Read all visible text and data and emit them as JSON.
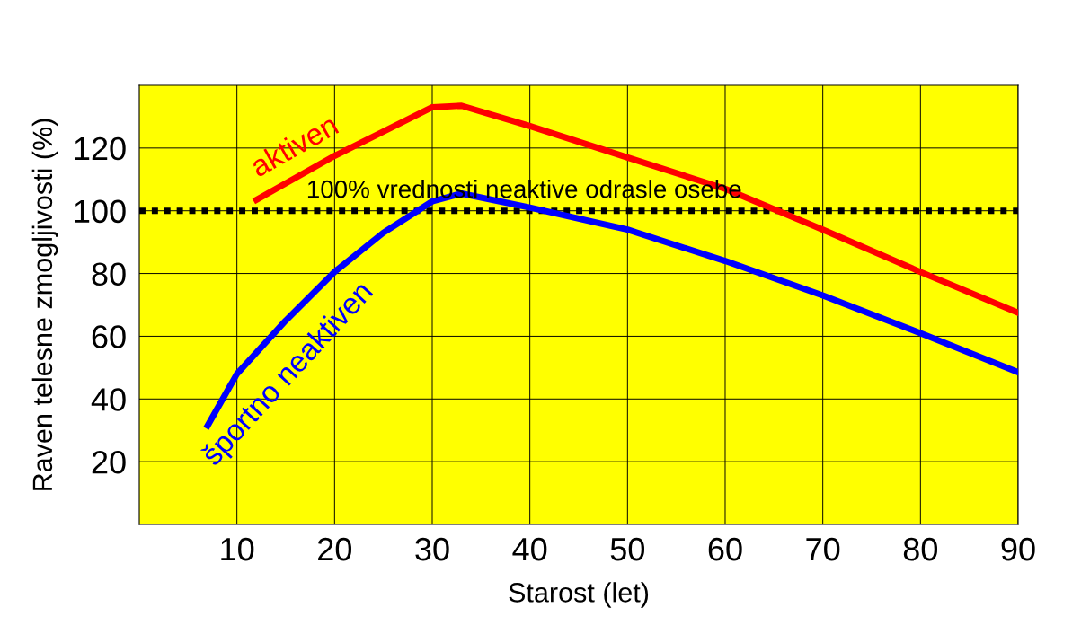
{
  "chart_data": {
    "type": "line",
    "xlabel": "Starost (let)",
    "ylabel": "Raven telesne zmogljivosti (%)",
    "xlim": [
      0,
      90
    ],
    "ylim": [
      0,
      140
    ],
    "xticks": [
      10,
      20,
      30,
      40,
      50,
      60,
      70,
      80,
      90
    ],
    "yticks": [
      20,
      40,
      60,
      80,
      100,
      120
    ],
    "grid": true,
    "line_style": "solid",
    "marker": "none",
    "series": [
      {
        "name": "aktiven",
        "color": "#ff0000",
        "x": [
          12,
          20,
          30,
          33,
          40,
          50,
          60,
          70,
          80,
          90
        ],
        "values": [
          103.5,
          117.5,
          133,
          133.5,
          127,
          117,
          107,
          94,
          80.5,
          67.5
        ]
      },
      {
        "name": "športno neaktiven",
        "color": "#0000ff",
        "x": [
          7,
          10,
          15,
          20,
          25,
          30,
          33,
          40,
          50,
          60,
          70,
          80,
          90
        ],
        "values": [
          31.5,
          48,
          65,
          80.5,
          93,
          103,
          105.5,
          101,
          94,
          84,
          73,
          61,
          48.5
        ]
      }
    ],
    "ref_lines": [
      {
        "axis": "y",
        "value": 100,
        "label": "100% vrednosti neaktive odrasle osebe",
        "color": "#000000",
        "line_style": "dotted"
      }
    ]
  }
}
